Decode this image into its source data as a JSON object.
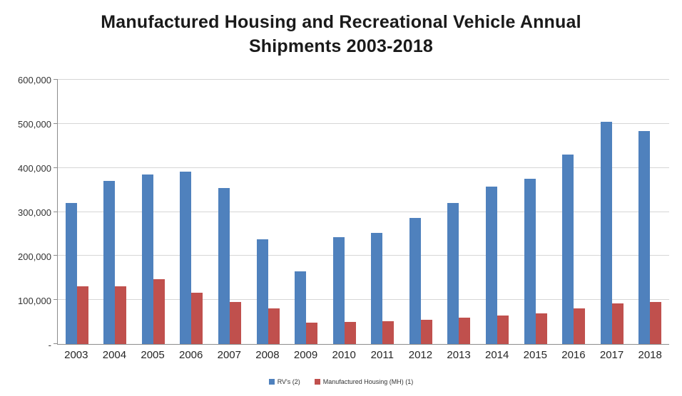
{
  "title": {
    "line1": "Manufactured Housing and Recreational Vehicle Annual",
    "line2": "Shipments 2003-2018"
  },
  "chart_data": {
    "type": "bar",
    "title": "Manufactured Housing and Recreational Vehicle Annual Shipments 2003-2018",
    "categories": [
      "2003",
      "2004",
      "2005",
      "2006",
      "2007",
      "2008",
      "2009",
      "2010",
      "2011",
      "2012",
      "2013",
      "2014",
      "2015",
      "2016",
      "2017",
      "2018"
    ],
    "series": [
      {
        "name": "RV's (2)",
        "color": "#4F81BD",
        "values": [
          320000,
          370000,
          385000,
          391000,
          354000,
          237000,
          165000,
          242000,
          252000,
          286000,
          321000,
          357000,
          375000,
          431000,
          504000,
          483000
        ]
      },
      {
        "name": "Manufactured Housing (MH) (1)",
        "color": "#C0504D",
        "values": [
          131000,
          131000,
          147000,
          117000,
          96000,
          81000,
          49000,
          50000,
          52000,
          55000,
          60000,
          64000,
          70000,
          81000,
          93000,
          96000
        ]
      }
    ],
    "xlabel": "",
    "ylabel": "",
    "ylim": [
      0,
      600000
    ],
    "yticks": [
      0,
      100000,
      200000,
      300000,
      400000,
      500000,
      600000
    ],
    "ytick_labels": [
      "-",
      "100,000",
      "200,000",
      "300,000",
      "400,000",
      "500,000",
      "600,000"
    ],
    "grid": true,
    "legend_position": "bottom"
  },
  "colors": {
    "rv_blue": "#4F81BD",
    "mh_red": "#C0504D",
    "gridline": "#D6D6D6",
    "axis": "#8C8C8C",
    "text": "#333333"
  }
}
